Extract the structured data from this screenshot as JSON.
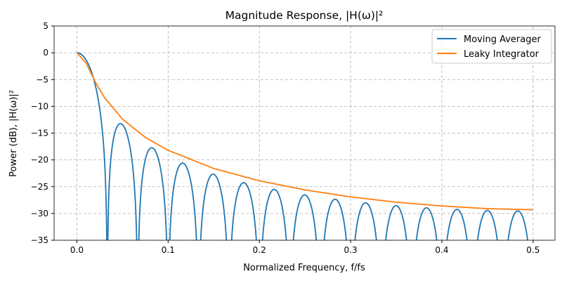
{
  "chart_data": {
    "type": "line",
    "title": "Magnitude Response, |H(ω)|²",
    "xlabel": "Normalized Frequency, f/fs",
    "ylabel": "Power (dB), |H(ω)|²",
    "xlim": [
      -0.025,
      0.524
    ],
    "ylim": [
      -35,
      5
    ],
    "xticks": [
      "0.0",
      "0.1",
      "0.2",
      "0.3",
      "0.4",
      "0.5"
    ],
    "yticks": [
      "5",
      "0",
      "−5",
      "−10",
      "−15",
      "−20",
      "−25",
      "−30",
      "−35"
    ],
    "grid": true,
    "legend_position": "top-right",
    "series": [
      {
        "name": "Moving Averager",
        "color": "#1f77b4",
        "mainlobe": {
          "x": [
            0.0
          ],
          "y": [
            0.0
          ]
        },
        "null_x": [
          0.0333,
          0.0667,
          0.1,
          0.1333,
          0.1667,
          0.2,
          0.2333,
          0.2667,
          0.3,
          0.3333,
          0.3667,
          0.4,
          0.4333,
          0.4667,
          0.5
        ],
        "sidelobe_peaks": {
          "x": [
            0.048,
            0.082,
            0.115,
            0.149,
            0.183,
            0.216,
            0.25,
            0.284,
            0.317,
            0.35,
            0.384,
            0.417,
            0.45,
            0.484
          ],
          "y": [
            -13.3,
            -17.8,
            -20.7,
            -22.8,
            -24.3,
            -25.5,
            -26.5,
            -27.3,
            -27.9,
            -28.5,
            -28.9,
            -29.2,
            -29.4,
            -29.5
          ]
        }
      },
      {
        "name": "Leaky Integrator",
        "color": "#ff7f0e",
        "x": [
          0.0,
          0.01,
          0.02,
          0.03,
          0.05,
          0.075,
          0.1,
          0.15,
          0.2,
          0.25,
          0.3,
          0.35,
          0.4,
          0.45,
          0.5
        ],
        "y": [
          0.0,
          -1.9,
          -5.4,
          -8.3,
          -12.4,
          -15.8,
          -18.2,
          -21.6,
          -23.9,
          -25.6,
          -26.9,
          -27.9,
          -28.6,
          -29.1,
          -29.3
        ]
      }
    ]
  }
}
